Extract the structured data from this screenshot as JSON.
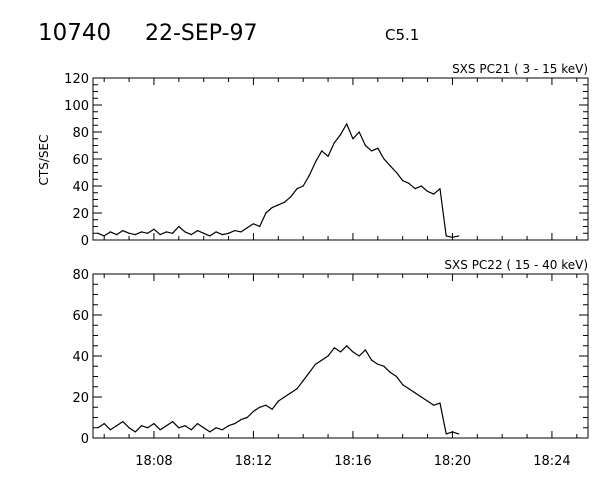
{
  "header": {
    "event_id": "10740",
    "date": "22-SEP-97",
    "goes_class": "C5.1"
  },
  "chart_data": [
    {
      "type": "line",
      "title": "SXS PC21  (  3 - 15 keV)",
      "ylabel": "CTS/SEC",
      "xlabel": "",
      "xlim": [
        "18:05:33",
        "18:25:27"
      ],
      "ylim": [
        0,
        120
      ],
      "yticks": [
        0,
        20,
        40,
        60,
        80,
        100,
        120
      ],
      "xticks": [
        "18:08",
        "18:12",
        "18:16",
        "18:20",
        "18:24"
      ],
      "xtick_labels_shown": false,
      "grid": false,
      "color": "#000000",
      "x": [
        "18:05:45",
        "18:06:00",
        "18:06:15",
        "18:06:30",
        "18:06:45",
        "18:07:00",
        "18:07:15",
        "18:07:30",
        "18:07:45",
        "18:08:00",
        "18:08:15",
        "18:08:30",
        "18:08:45",
        "18:09:00",
        "18:09:15",
        "18:09:30",
        "18:09:45",
        "18:10:00",
        "18:10:15",
        "18:10:30",
        "18:10:45",
        "18:11:00",
        "18:11:15",
        "18:11:30",
        "18:11:45",
        "18:12:00",
        "18:12:15",
        "18:12:30",
        "18:12:45",
        "18:13:00",
        "18:13:15",
        "18:13:30",
        "18:13:45",
        "18:14:00",
        "18:14:15",
        "18:14:30",
        "18:14:45",
        "18:15:00",
        "18:15:15",
        "18:15:30",
        "18:15:45",
        "18:16:00",
        "18:16:15",
        "18:16:30",
        "18:16:45",
        "18:17:00",
        "18:17:15",
        "18:17:30",
        "18:17:45",
        "18:18:00",
        "18:18:15",
        "18:18:30",
        "18:18:45",
        "18:19:00",
        "18:19:15",
        "18:19:30",
        "18:19:45",
        "18:20:00",
        "18:20:15"
      ],
      "values": [
        5,
        3,
        6,
        4,
        7,
        5,
        4,
        6,
        5,
        8,
        4,
        6,
        5,
        10,
        6,
        4,
        7,
        5,
        3,
        6,
        4,
        5,
        7,
        6,
        9,
        12,
        10,
        20,
        24,
        26,
        28,
        32,
        38,
        40,
        48,
        58,
        66,
        62,
        72,
        78,
        86,
        75,
        80,
        70,
        66,
        68,
        60,
        55,
        50,
        44,
        42,
        38,
        40,
        36,
        34,
        38,
        3,
        2,
        3
      ]
    },
    {
      "type": "line",
      "title": "SXS PC22  ( 15 - 40 keV)",
      "ylabel": "",
      "xlabel": "",
      "xlim": [
        "18:05:33",
        "18:25:27"
      ],
      "ylim": [
        0,
        80
      ],
      "yticks": [
        0,
        20,
        40,
        60,
        80
      ],
      "xticks": [
        "18:08",
        "18:12",
        "18:16",
        "18:20",
        "18:24"
      ],
      "xtick_labels_shown": true,
      "grid": false,
      "color": "#000000",
      "x": [
        "18:05:45",
        "18:06:00",
        "18:06:15",
        "18:06:30",
        "18:06:45",
        "18:07:00",
        "18:07:15",
        "18:07:30",
        "18:07:45",
        "18:08:00",
        "18:08:15",
        "18:08:30",
        "18:08:45",
        "18:09:00",
        "18:09:15",
        "18:09:30",
        "18:09:45",
        "18:10:00",
        "18:10:15",
        "18:10:30",
        "18:10:45",
        "18:11:00",
        "18:11:15",
        "18:11:30",
        "18:11:45",
        "18:12:00",
        "18:12:15",
        "18:12:30",
        "18:12:45",
        "18:13:00",
        "18:13:15",
        "18:13:30",
        "18:13:45",
        "18:14:00",
        "18:14:15",
        "18:14:30",
        "18:14:45",
        "18:15:00",
        "18:15:15",
        "18:15:30",
        "18:15:45",
        "18:16:00",
        "18:16:15",
        "18:16:30",
        "18:16:45",
        "18:17:00",
        "18:17:15",
        "18:17:30",
        "18:17:45",
        "18:18:00",
        "18:18:15",
        "18:18:30",
        "18:18:45",
        "18:19:00",
        "18:19:15",
        "18:19:30",
        "18:19:45",
        "18:20:00",
        "18:20:15"
      ],
      "values": [
        5,
        7,
        4,
        6,
        8,
        5,
        3,
        6,
        5,
        7,
        4,
        6,
        8,
        5,
        6,
        4,
        7,
        5,
        3,
        5,
        4,
        6,
        7,
        9,
        10,
        13,
        15,
        16,
        14,
        18,
        20,
        22,
        24,
        28,
        32,
        36,
        38,
        40,
        44,
        42,
        45,
        42,
        40,
        43,
        38,
        36,
        35,
        32,
        30,
        26,
        24,
        22,
        20,
        18,
        16,
        17,
        2,
        3,
        2
      ]
    }
  ]
}
